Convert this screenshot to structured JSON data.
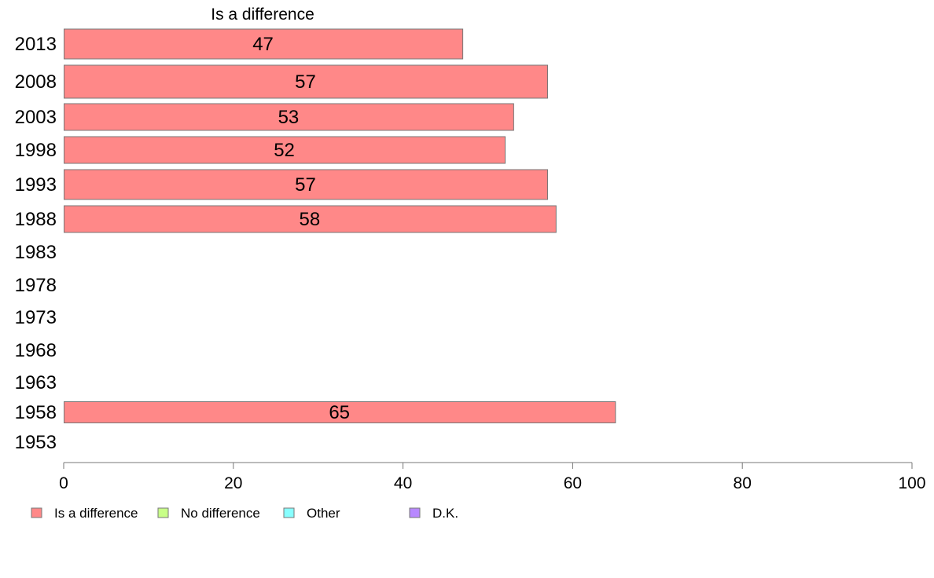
{
  "chart_data": {
    "type": "bar",
    "orientation": "horizontal",
    "panel_title": "Is a difference",
    "categories": [
      "2013",
      "2008",
      "2003",
      "1998",
      "1993",
      "1988",
      "1983",
      "1978",
      "1973",
      "1968",
      "1963",
      "1958",
      "1953"
    ],
    "series": [
      {
        "name": "Is a difference",
        "color": "#ff8888",
        "values": [
          47,
          57,
          53,
          52,
          57,
          58,
          null,
          null,
          null,
          null,
          null,
          65,
          null
        ]
      }
    ],
    "xlim": [
      0,
      100
    ],
    "xticks": [
      "0",
      "20",
      "40",
      "60",
      "80",
      "100"
    ],
    "legend": [
      {
        "label": "Is a difference",
        "color": "#ff8888"
      },
      {
        "label": "No difference",
        "color": "#c8ff88"
      },
      {
        "label": "Other",
        "color": "#88ffff"
      },
      {
        "label": "D.K.",
        "color": "#b888ff"
      }
    ],
    "legend_position": "bottom",
    "grid": false
  }
}
